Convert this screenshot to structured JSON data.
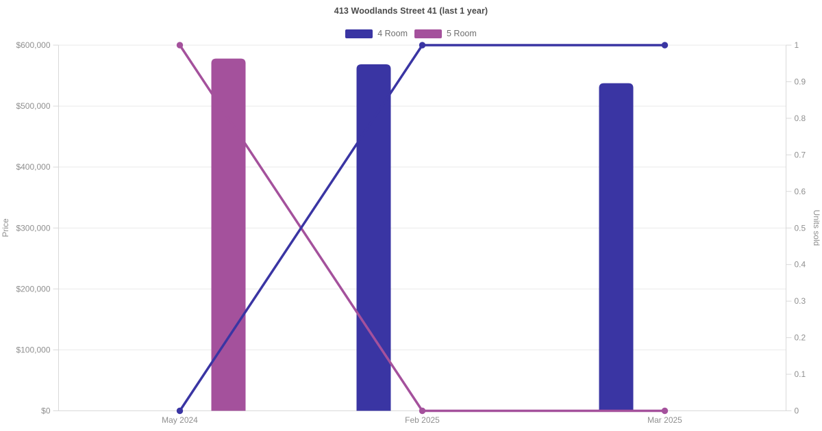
{
  "page": {
    "background": "#ffffff"
  },
  "chart_data": {
    "type": "bar+line",
    "title": "413 Woodlands Street 41 (last 1 year)",
    "categories": [
      "May 2024",
      "Feb 2025",
      "Mar 2025"
    ],
    "legend": [
      {
        "label": "4 Room",
        "color": "#3A35A3"
      },
      {
        "label": "5 Room",
        "color": "#A4519C"
      }
    ],
    "legend_position": "top",
    "grid": "horizontal-only",
    "y_left": {
      "label": "Price",
      "min": 0,
      "max": 600000,
      "tick_values": [
        0,
        100000,
        200000,
        300000,
        400000,
        500000,
        600000
      ],
      "tick_labels": [
        "$0",
        "$100,000",
        "$200,000",
        "$300,000",
        "$400,000",
        "$500,000",
        "$600,000"
      ]
    },
    "y_right": {
      "label": "Units sold",
      "min": 0,
      "max": 1,
      "tick_values": [
        0,
        0.1,
        0.2,
        0.3,
        0.4,
        0.5,
        0.6,
        0.7,
        0.8,
        0.9,
        1
      ],
      "tick_labels": [
        "0",
        "0.1",
        "0.2",
        "0.3",
        "0.4",
        "0.5",
        "0.6",
        "0.7",
        "0.8",
        "0.9",
        "1"
      ]
    },
    "series": [
      {
        "name": "4 Room",
        "kind": "bar",
        "axis": "left",
        "color": "#3A35A3",
        "values": [
          null,
          568500,
          537500
        ]
      },
      {
        "name": "5 Room",
        "kind": "bar",
        "axis": "left",
        "color": "#A4519C",
        "values": [
          578000,
          null,
          null
        ]
      },
      {
        "name": "4 Room",
        "kind": "line",
        "axis": "right",
        "color": "#3A35A3",
        "values": [
          0,
          1,
          1
        ]
      },
      {
        "name": "5 Room",
        "kind": "line",
        "axis": "right",
        "color": "#A4519C",
        "values": [
          1,
          0,
          0
        ]
      }
    ]
  }
}
